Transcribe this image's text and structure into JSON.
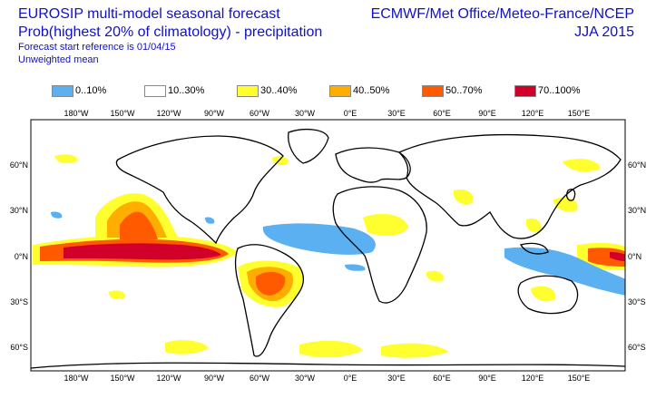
{
  "header": {
    "title": "EUROSIP multi-model seasonal forecast",
    "subtitle": "Prob(highest 20% of climatology) - precipitation",
    "start_reference": "Forecast start reference is 01/04/15",
    "mean_type": "Unweighted mean",
    "centres": "ECMWF/Met Office/Meteo-France/NCEP",
    "season": "JJA 2015"
  },
  "legend": [
    {
      "label": "0..10%",
      "color": "#5ab0f0"
    },
    {
      "label": "10..30%",
      "color": "#ffffff"
    },
    {
      "label": "30..40%",
      "color": "#ffff30"
    },
    {
      "label": "40..50%",
      "color": "#ffae00"
    },
    {
      "label": "50..70%",
      "color": "#ff5a00"
    },
    {
      "label": "70..100%",
      "color": "#d0002a"
    }
  ],
  "map": {
    "lon_ticks": [
      "180°W",
      "150°W",
      "120°W",
      "90°W",
      "60°W",
      "30°W",
      "0°E",
      "30°E",
      "60°E",
      "90°E",
      "120°E",
      "150°E"
    ],
    "lat_ticks": [
      "60°N",
      "30°N",
      "0°N",
      "30°S",
      "60°S"
    ]
  }
}
